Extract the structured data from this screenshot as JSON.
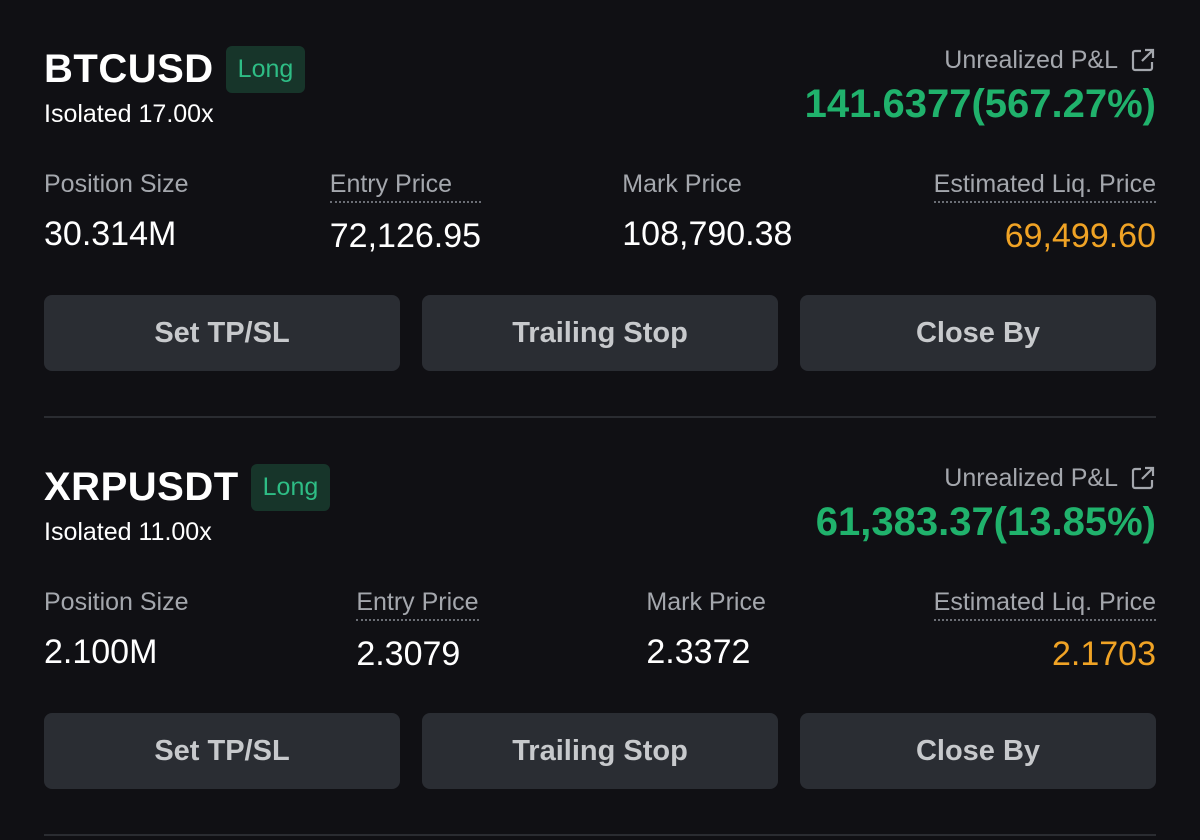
{
  "positions": [
    {
      "symbol": "BTCUSD",
      "side": "Long",
      "margin": "Isolated 17.00x",
      "pnl_label": "Unrealized P&L",
      "pnl": "141.6377(567.27%)",
      "fields": [
        {
          "label": "Position Size",
          "value": "30.314M"
        },
        {
          "label": "Entry Price",
          "value": "72,126.95"
        },
        {
          "label": "Mark Price",
          "value": "108,790.38"
        },
        {
          "label": "Estimated Liq. Price",
          "value": "69,499.60"
        }
      ],
      "buttons": [
        "Set TP/SL",
        "Trailing Stop",
        "Close By"
      ]
    },
    {
      "symbol": "XRPUSDT",
      "side": "Long",
      "margin": "Isolated 11.00x",
      "pnl_label": "Unrealized P&L",
      "pnl": "61,383.37(13.85%)",
      "fields": [
        {
          "label": "Position Size",
          "value": "2.100M"
        },
        {
          "label": "Entry Price",
          "value": "2.3079"
        },
        {
          "label": "Mark Price",
          "value": "2.3372"
        },
        {
          "label": "Estimated Liq. Price",
          "value": "2.1703"
        }
      ],
      "buttons": [
        "Set TP/SL",
        "Trailing Stop",
        "Close By"
      ]
    }
  ]
}
